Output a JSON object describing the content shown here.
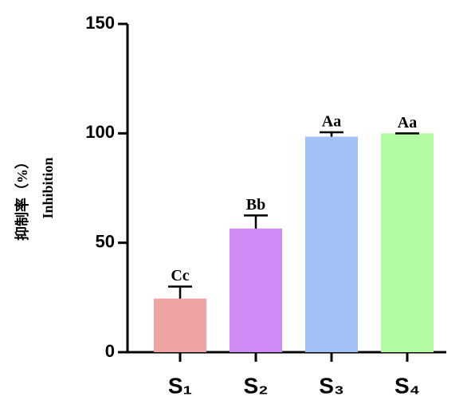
{
  "chart_data": {
    "type": "bar",
    "ylabel": [
      "抑制率（%）",
      "Inhibition"
    ],
    "categories": [
      "S₁",
      "S₂",
      "S₃",
      "S₄"
    ],
    "values": [
      24.5,
      56.5,
      98.5,
      100
    ],
    "errors": [
      5.5,
      6,
      2,
      0
    ],
    "annotations": [
      "Cc",
      "Bb",
      "Aa",
      "Aa"
    ],
    "colors": [
      "#f0a3a3",
      "#cf8bf5",
      "#a3c0f7",
      "#b3fba3"
    ],
    "ylim": [
      0,
      150
    ],
    "yticks": [
      0,
      50,
      100,
      150
    ],
    "grid": false
  }
}
